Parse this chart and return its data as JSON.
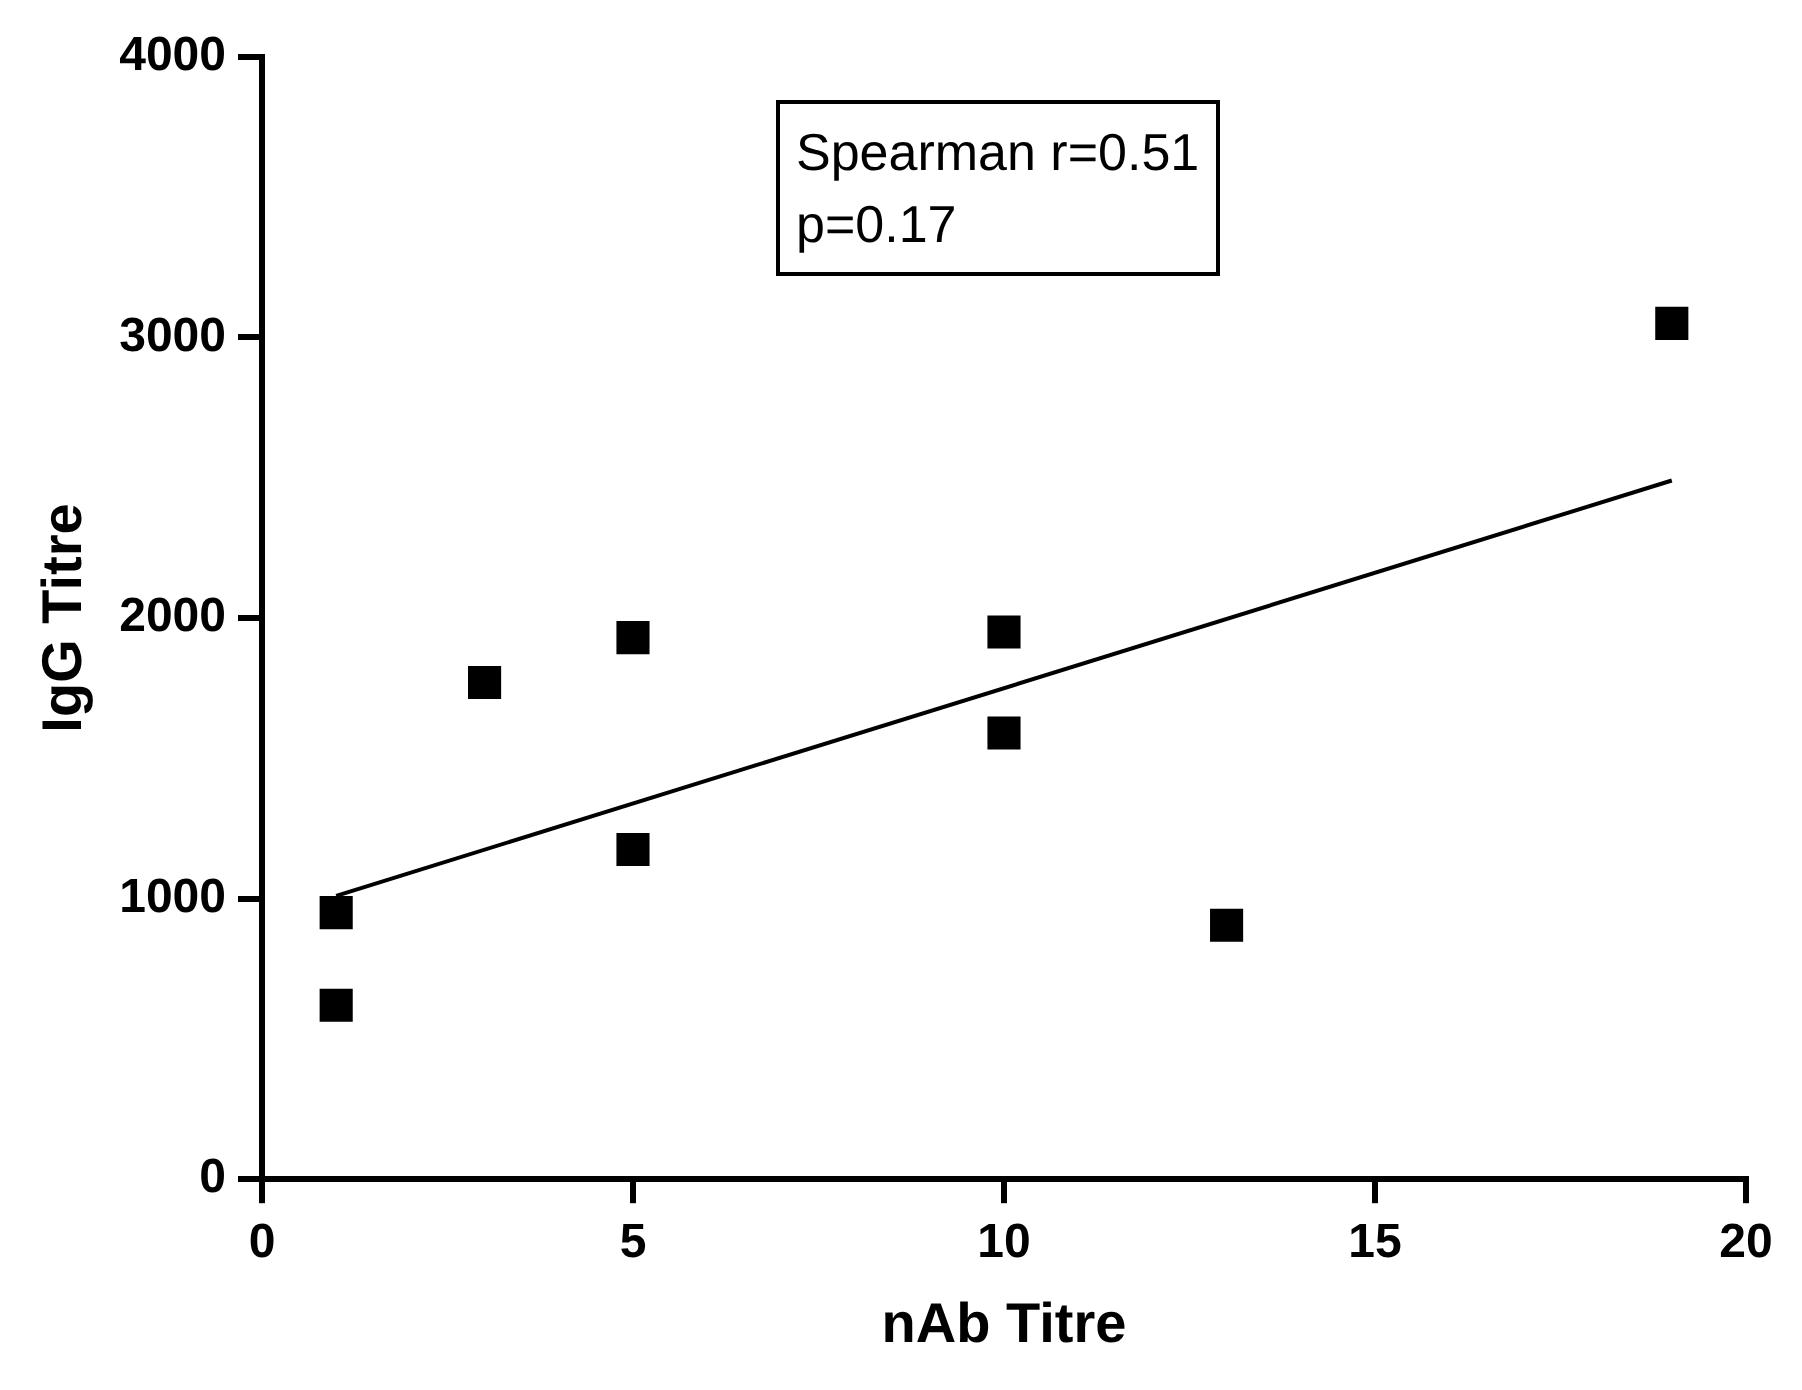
{
  "chart_data": {
    "type": "scatter",
    "xlabel": "nAb Titre",
    "ylabel": "IgG Titre",
    "annotations": [
      "Spearman r=0.51",
      "p=0.17"
    ],
    "xlim": [
      0,
      20
    ],
    "xticks": [
      0,
      5,
      10,
      15,
      20
    ],
    "ylim": [
      0,
      4000
    ],
    "yticks": [
      0,
      1000,
      2000,
      3000,
      4000
    ],
    "grid": false,
    "legend": false,
    "marker": "square",
    "series": [
      {
        "type": "scatter",
        "color": "#000000",
        "x": [
          1,
          1,
          3,
          5,
          5,
          10,
          10,
          13,
          19
        ],
        "values": [
          950,
          620,
          1770,
          1930,
          1175,
          1950,
          1590,
          905,
          3050
        ]
      },
      {
        "type": "line",
        "color": "#000000",
        "x": [
          1,
          19
        ],
        "values": [
          1010,
          2490
        ],
        "line_style": "solid",
        "marker": "none"
      }
    ]
  }
}
